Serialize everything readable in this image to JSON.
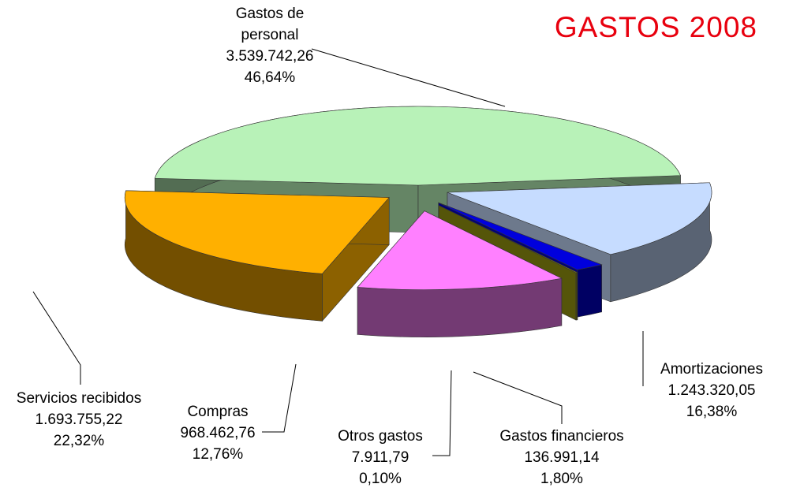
{
  "chart_data": {
    "type": "pie",
    "title": "GASTOS 2008",
    "categories": [
      "Gastos de personal",
      "Amortizaciones",
      "Gastos financieros",
      "Otros gastos",
      "Compras",
      "Servicios recibidos"
    ],
    "values": [
      3539742.26,
      1243320.05,
      136991.14,
      7911.79,
      968462.76,
      1693755.22
    ],
    "value_labels": [
      "3.539.742,26",
      "1.243.320,05",
      "136.991,14",
      "7.911,79",
      "968.462,76",
      "1.693.755,22"
    ],
    "percentages": [
      46.64,
      16.38,
      1.8,
      0.1,
      12.76,
      22.32
    ],
    "percentage_labels": [
      "46,64%",
      "16,38%",
      "1,80%",
      "0,10%",
      "12,76%",
      "22,32%"
    ],
    "colors": [
      "#b8f2b8",
      "#c6dcff",
      "#0000dd",
      "#9a9a10",
      "#ff80ff",
      "#ffb000"
    ]
  }
}
